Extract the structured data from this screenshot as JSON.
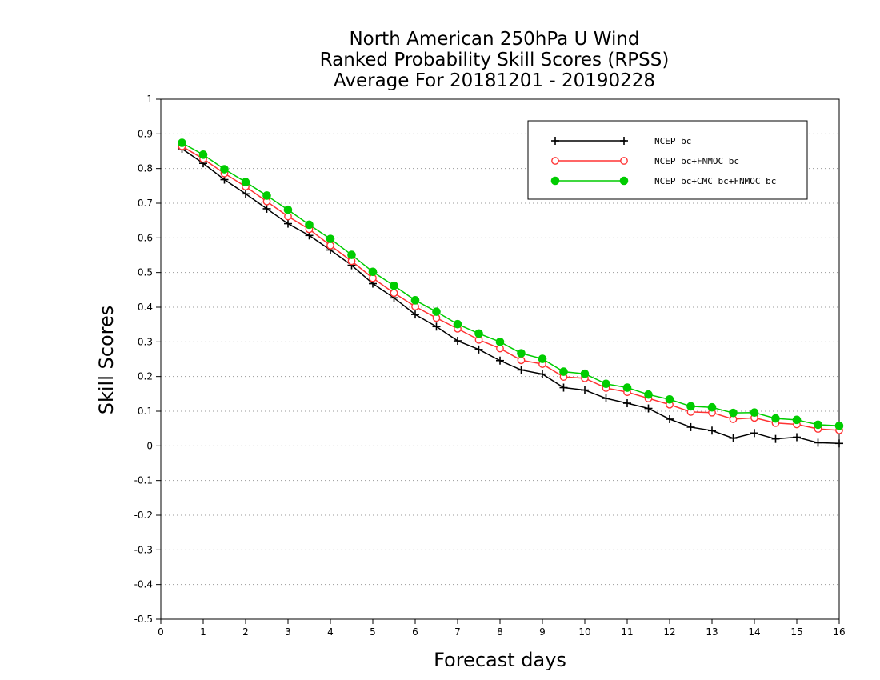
{
  "chart_data": {
    "type": "line",
    "title_lines": [
      "North American 250hPa U Wind",
      "Ranked Probability Skill Scores (RPSS)",
      "Average For 20181201 - 20190228"
    ],
    "xlabel": "Forecast days",
    "ylabel": "Skill Scores",
    "xlim": [
      0,
      16
    ],
    "ylim": [
      -0.5,
      1
    ],
    "x_ticks": [
      "0",
      "1",
      "2",
      "3",
      "4",
      "5",
      "6",
      "7",
      "8",
      "9",
      "10",
      "11",
      "12",
      "13",
      "14",
      "15",
      "16"
    ],
    "y_ticks": [
      "1",
      "0.9",
      "0.8",
      "0.7",
      "0.6",
      "0.5",
      "0.4",
      "0.3",
      "0.2",
      "0.1",
      "0",
      "-0.1",
      "-0.2",
      "-0.3",
      "-0.4",
      "-0.5"
    ],
    "y_tick_values": [
      1,
      0.9,
      0.8,
      0.7,
      0.6,
      0.5,
      0.4,
      0.3,
      0.2,
      0.1,
      0,
      -0.1,
      -0.2,
      -0.3,
      -0.4,
      -0.5
    ],
    "grid": "dotted horizontal",
    "legend_position": "top-right",
    "x": [
      0.5,
      1,
      1.5,
      2,
      2.5,
      3,
      3.5,
      4,
      4.5,
      5,
      5.5,
      6,
      6.5,
      7,
      7.5,
      8,
      8.5,
      9,
      9.5,
      10,
      10.5,
      11,
      11.5,
      12,
      12.5,
      13,
      13.5,
      14,
      14.5,
      15,
      15.5,
      16
    ],
    "series": [
      {
        "name": "NCEP_bc",
        "color": "#000000",
        "marker": "plus",
        "values": [
          0.857,
          0.815,
          0.768,
          0.727,
          0.684,
          0.641,
          0.607,
          0.565,
          0.521,
          0.468,
          0.427,
          0.379,
          0.344,
          0.303,
          0.278,
          0.246,
          0.219,
          0.207,
          0.168,
          0.161,
          0.137,
          0.123,
          0.108,
          0.077,
          0.054,
          0.044,
          0.022,
          0.037,
          0.02,
          0.025,
          0.009,
          0.007
        ]
      },
      {
        "name": "NCEP_bc+FNMOC_bc",
        "color": "#ff3333",
        "marker": "open-circle",
        "values": [
          0.864,
          0.828,
          0.786,
          0.748,
          0.705,
          0.662,
          0.625,
          0.578,
          0.533,
          0.484,
          0.441,
          0.402,
          0.369,
          0.338,
          0.306,
          0.281,
          0.247,
          0.236,
          0.199,
          0.195,
          0.167,
          0.155,
          0.137,
          0.119,
          0.098,
          0.096,
          0.077,
          0.081,
          0.066,
          0.062,
          0.049,
          0.045
        ]
      },
      {
        "name": "NCEP_bc+CMC_bc+FNMOC_bc",
        "color": "#00cc00",
        "marker": "filled-circle",
        "values": [
          0.874,
          0.84,
          0.798,
          0.761,
          0.722,
          0.681,
          0.638,
          0.597,
          0.551,
          0.502,
          0.462,
          0.42,
          0.387,
          0.351,
          0.324,
          0.3,
          0.267,
          0.251,
          0.214,
          0.208,
          0.179,
          0.168,
          0.148,
          0.134,
          0.114,
          0.111,
          0.095,
          0.096,
          0.079,
          0.075,
          0.061,
          0.058
        ]
      }
    ]
  }
}
